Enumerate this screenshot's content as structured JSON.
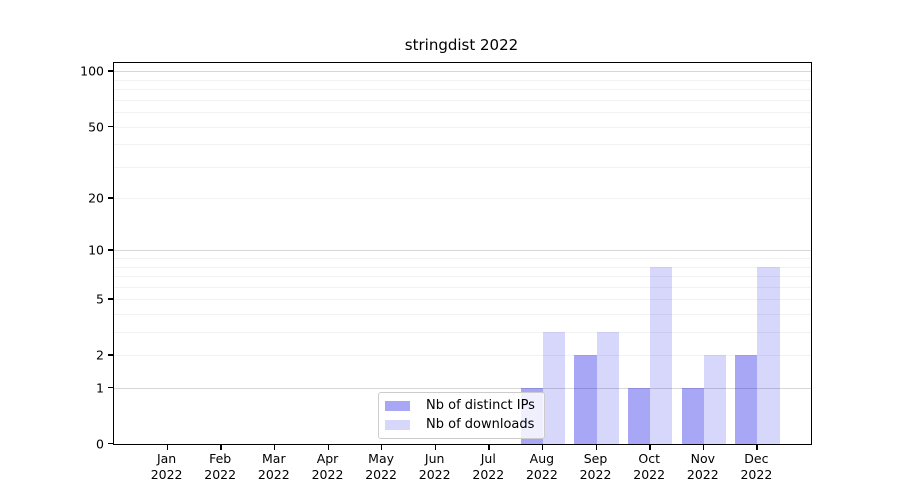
{
  "title": "stringdist 2022",
  "chart_data": {
    "type": "bar",
    "title": "stringdist 2022",
    "categories": [
      "Jan 2022",
      "Feb 2022",
      "Mar 2022",
      "Apr 2022",
      "May 2022",
      "Jun 2022",
      "Jul 2022",
      "Aug 2022",
      "Sep 2022",
      "Oct 2022",
      "Nov 2022",
      "Dec 2022"
    ],
    "series": [
      {
        "name": "Nb of distinct IPs",
        "color": "rgba(0,0,230,0.345)",
        "values": [
          0,
          0,
          0,
          0,
          0,
          0,
          0,
          1,
          2,
          1,
          1,
          2
        ]
      },
      {
        "name": "Nb of downloads",
        "color": "rgba(0,0,230,0.155)",
        "values": [
          0,
          0,
          0,
          0,
          0,
          0,
          0,
          3,
          3,
          8,
          2,
          8
        ]
      }
    ],
    "xlabel": "",
    "ylabel": "",
    "yscale": "log1p",
    "ylim": [
      0,
      111
    ],
    "y_ticks": [
      0,
      1,
      2,
      5,
      10,
      20,
      50,
      100
    ],
    "y_major_grid": [
      1,
      10,
      100
    ],
    "y_minor_grid": [
      2,
      3,
      4,
      5,
      6,
      7,
      8,
      9,
      20,
      30,
      40,
      50,
      60,
      70,
      80,
      90
    ],
    "grid": true,
    "legend_position": "lower center inside"
  },
  "legend": {
    "items": [
      {
        "label": "Nb of distinct IPs",
        "color": "rgba(0,0,230,0.345)"
      },
      {
        "label": "Nb of downloads",
        "color": "rgba(0,0,230,0.155)"
      }
    ]
  },
  "colors": {
    "bar_dark": "#a8a8f7",
    "bar_light": "#d7d7f8",
    "grid_minor": "#f2f2f2",
    "grid_major": "#d7d7d7",
    "axis": "#000000",
    "background": "#ffffff"
  }
}
